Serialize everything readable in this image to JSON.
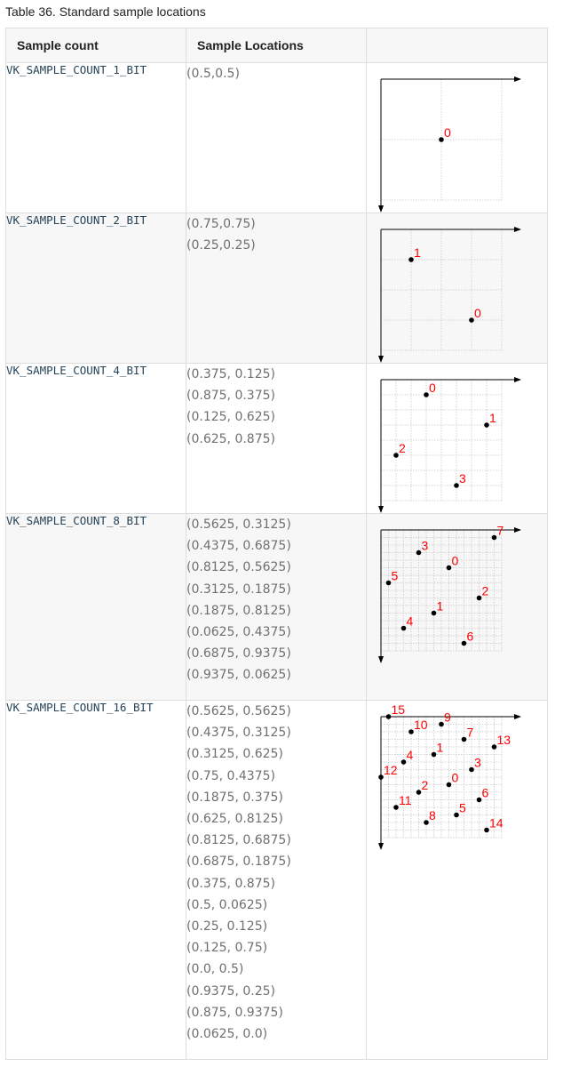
{
  "caption": "Table 36. Standard sample locations",
  "headers": {
    "col1": "Sample count",
    "col2": "Sample Locations"
  },
  "rows": [
    {
      "count": "VK_SAMPLE_COUNT_1_BIT",
      "grid": 2,
      "locations": [
        "(0.5,0.5)"
      ],
      "points": [
        [
          0.5,
          0.5
        ]
      ]
    },
    {
      "count": "VK_SAMPLE_COUNT_2_BIT",
      "grid": 4,
      "locations": [
        "(0.75,0.75)",
        "(0.25,0.25)"
      ],
      "points": [
        [
          0.75,
          0.75
        ],
        [
          0.25,
          0.25
        ]
      ]
    },
    {
      "count": "VK_SAMPLE_COUNT_4_BIT",
      "grid": 8,
      "locations": [
        "(0.375, 0.125)",
        "(0.875, 0.375)",
        "(0.125, 0.625)",
        "(0.625, 0.875)"
      ],
      "points": [
        [
          0.375,
          0.125
        ],
        [
          0.875,
          0.375
        ],
        [
          0.125,
          0.625
        ],
        [
          0.625,
          0.875
        ]
      ]
    },
    {
      "count": "VK_SAMPLE_COUNT_8_BIT",
      "grid": 16,
      "locations": [
        "(0.5625, 0.3125)",
        "(0.4375, 0.6875)",
        "(0.8125, 0.5625)",
        "(0.3125, 0.1875)",
        "(0.1875, 0.8125)",
        "(0.0625, 0.4375)",
        "(0.6875, 0.9375)",
        "(0.9375, 0.0625)"
      ],
      "points": [
        [
          0.5625,
          0.3125
        ],
        [
          0.4375,
          0.6875
        ],
        [
          0.8125,
          0.5625
        ],
        [
          0.3125,
          0.1875
        ],
        [
          0.1875,
          0.8125
        ],
        [
          0.0625,
          0.4375
        ],
        [
          0.6875,
          0.9375
        ],
        [
          0.9375,
          0.0625
        ]
      ]
    },
    {
      "count": "VK_SAMPLE_COUNT_16_BIT",
      "grid": 16,
      "locations": [
        "(0.5625, 0.5625)",
        "(0.4375, 0.3125)",
        "(0.3125, 0.625)",
        "(0.75, 0.4375)",
        "(0.1875, 0.375)",
        "(0.625, 0.8125)",
        "(0.8125, 0.6875)",
        "(0.6875, 0.1875)",
        "(0.375, 0.875)",
        "(0.5, 0.0625)",
        "(0.25, 0.125)",
        "(0.125, 0.75)",
        "(0.0, 0.5)",
        "(0.9375, 0.25)",
        "(0.875, 0.9375)",
        "(0.0625, 0.0)"
      ],
      "points": [
        [
          0.5625,
          0.5625
        ],
        [
          0.4375,
          0.3125
        ],
        [
          0.3125,
          0.625
        ],
        [
          0.75,
          0.4375
        ],
        [
          0.1875,
          0.375
        ],
        [
          0.625,
          0.8125
        ],
        [
          0.8125,
          0.6875
        ],
        [
          0.6875,
          0.1875
        ],
        [
          0.375,
          0.875
        ],
        [
          0.5,
          0.0625
        ],
        [
          0.25,
          0.125
        ],
        [
          0.125,
          0.75
        ],
        [
          0.0,
          0.5
        ],
        [
          0.9375,
          0.25
        ],
        [
          0.875,
          0.9375
        ],
        [
          0.0625,
          0.0
        ]
      ]
    }
  ],
  "colors": {
    "label": "#ff0000",
    "dot": "#000000",
    "grid": "#c8c8c8",
    "axis": "#000000"
  }
}
